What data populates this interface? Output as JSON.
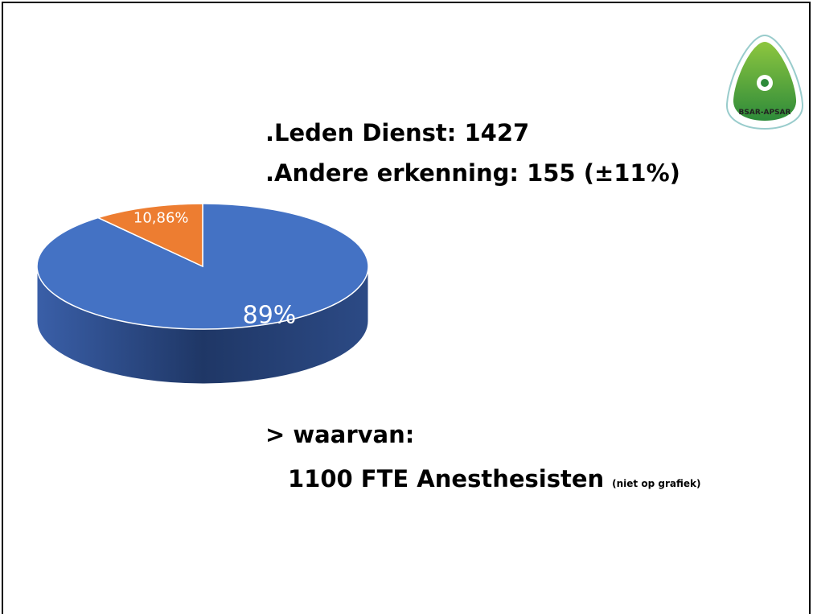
{
  "chart_data": {
    "type": "pie",
    "values": [
      89,
      10.86
    ],
    "value_labels": [
      "89%",
      "10,86%"
    ],
    "colors": [
      "#4472c4",
      "#ed7d31"
    ]
  },
  "slide": {
    "lines": [
      ".Leden Dienst: 1427",
      ".Andere erkenning: 155 (±11%)",
      "> waarvan:"
    ],
    "detail": "1100 FTE Anesthesisten",
    "note": "(niet op grafiek)"
  },
  "logo": {
    "text": "BSAR-APSAR"
  }
}
